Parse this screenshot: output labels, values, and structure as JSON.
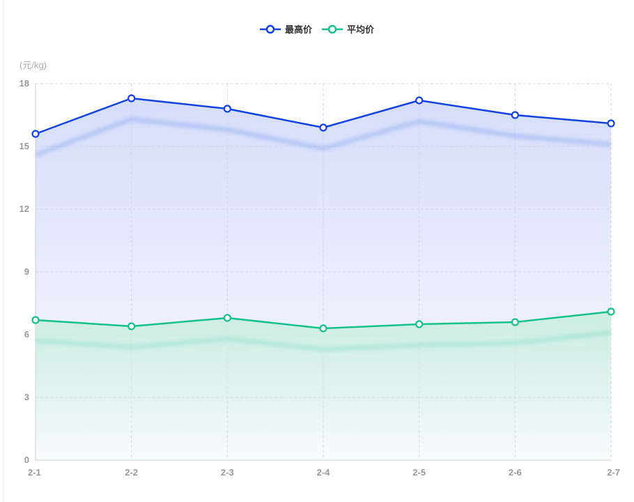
{
  "chart_data": {
    "type": "area",
    "categories": [
      "2-1",
      "2-2",
      "2-3",
      "2-4",
      "2-5",
      "2-6",
      "2-7"
    ],
    "series": [
      {
        "name": "最高价",
        "values": [
          15.6,
          17.3,
          16.8,
          15.9,
          17.2,
          16.5,
          16.1
        ],
        "color": "#1243e0",
        "fill_color": "#c8d2f7"
      },
      {
        "name": "平均价",
        "values": [
          6.7,
          6.4,
          6.8,
          6.3,
          6.5,
          6.6,
          7.1
        ],
        "color": "#14c08c",
        "fill_color": "#c9eedf"
      }
    ],
    "ylabel": "(元/kg)",
    "ylim": [
      0,
      18
    ],
    "yticks": [
      0,
      3,
      6,
      9,
      12,
      15,
      18
    ],
    "grid": true,
    "legend_position": "top-center"
  }
}
